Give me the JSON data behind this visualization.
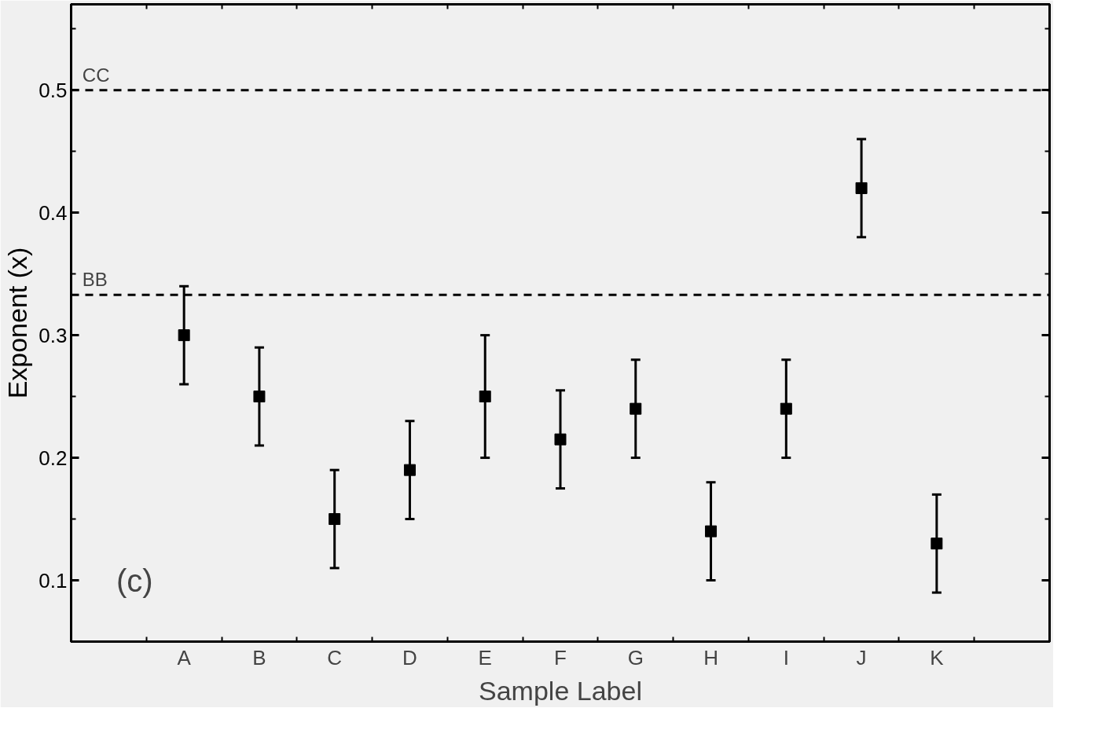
{
  "chart_data": {
    "type": "scatter",
    "xlabel": "Sample Label",
    "ylabel": "Exponent (x)",
    "categories": [
      "A",
      "B",
      "C",
      "D",
      "E",
      "F",
      "G",
      "H",
      "I",
      "J",
      "K"
    ],
    "series": [
      {
        "color": "#000000",
        "values": [
          0.3,
          0.25,
          0.15,
          0.19,
          0.25,
          0.215,
          0.24,
          0.14,
          0.24,
          0.42,
          0.13
        ],
        "errors": [
          0.04,
          0.04,
          0.04,
          0.04,
          0.05,
          0.04,
          0.04,
          0.04,
          0.04,
          0.04,
          0.04
        ]
      }
    ],
    "ylim": [
      0.05,
      0.57
    ],
    "yticks": [
      0.1,
      0.2,
      0.3,
      0.4,
      0.5
    ],
    "ref_lines": [
      {
        "axis": "y",
        "value": 0.5,
        "label": "CC",
        "line_style": "dashed"
      },
      {
        "axis": "y",
        "value": 0.333,
        "label": "BB",
        "line_style": "dashed"
      }
    ],
    "annotations": [
      "(c)"
    ],
    "grid": false,
    "marker": "square"
  }
}
